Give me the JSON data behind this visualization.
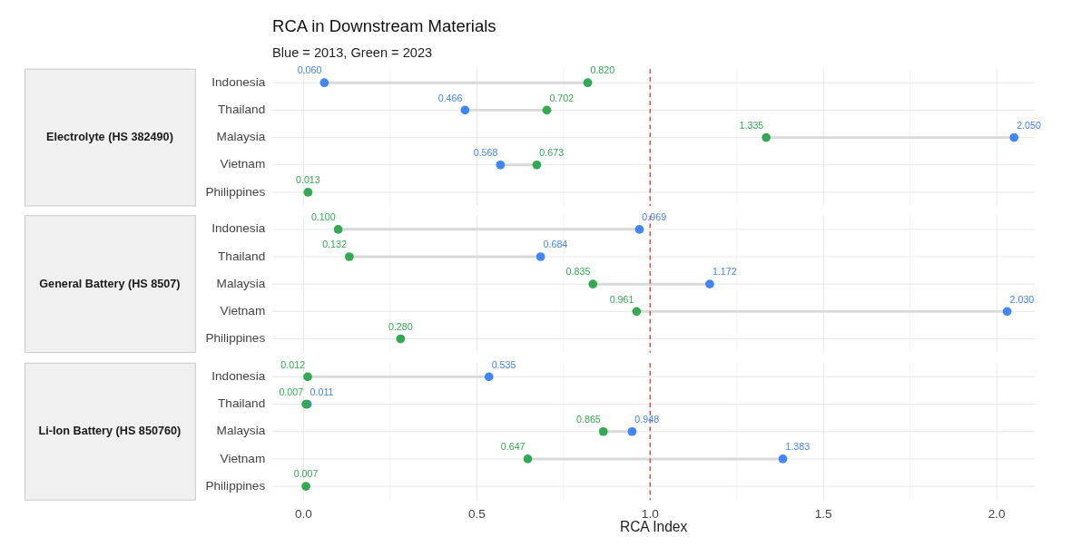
{
  "chart_data": [
    {
      "type": "scatter",
      "orientation": "horizontal",
      "title": "RCA in Downstream Materials",
      "subtitle": "Blue = 2013, Green = 2023",
      "ylabel": "Electrolyte (HS 382490)",
      "marker": "circle",
      "categories": [
        "Indonesia",
        "Thailand",
        "Malaysia",
        "Vietnam",
        "Philippines"
      ],
      "series": [
        {
          "color": "#4285f4",
          "values": [
            0.06,
            0.466,
            2.05,
            0.568,
            null
          ],
          "value_labels": [
            "0.060",
            "0.466",
            "2.050",
            "0.568",
            null
          ]
        },
        {
          "color": "#34a853",
          "values": [
            0.82,
            0.702,
            1.335,
            0.673,
            0.013
          ],
          "value_labels": [
            "0.820",
            "0.702",
            "1.335",
            "0.673",
            "0.013"
          ]
        }
      ],
      "xlim": [
        -0.09,
        2.11
      ],
      "xticks": [
        0,
        0.5,
        1,
        1.5,
        2
      ],
      "grid": true,
      "tick_labels": "y",
      "ref_lines": [
        {
          "axis": "x",
          "value": 1,
          "color": "#e8453c",
          "line_style": "dashed"
        }
      ]
    },
    {
      "type": "scatter",
      "orientation": "horizontal",
      "ylabel": "General Battery (HS 8507)",
      "marker": "circle",
      "categories": [
        "Indonesia",
        "Thailand",
        "Malaysia",
        "Vietnam",
        "Philippines"
      ],
      "series": [
        {
          "color": "#4285f4",
          "values": [
            0.969,
            0.684,
            1.172,
            2.03,
            null
          ],
          "value_labels": [
            "0.969",
            "0.684",
            "1.172",
            "2.030",
            null
          ]
        },
        {
          "color": "#34a853",
          "values": [
            0.1,
            0.132,
            0.835,
            0.961,
            0.28
          ],
          "value_labels": [
            "0.100",
            "0.132",
            "0.835",
            "0.961",
            "0.280"
          ]
        }
      ],
      "xlim": [
        -0.09,
        2.11
      ],
      "xticks": [
        0,
        0.5,
        1,
        1.5,
        2
      ],
      "grid": true,
      "tick_labels": "y",
      "ref_lines": [
        {
          "axis": "x",
          "value": 1,
          "color": "#e8453c",
          "line_style": "dashed"
        }
      ]
    },
    {
      "type": "scatter",
      "orientation": "horizontal",
      "ylabel": "Li-Ion Battery (HS 850760)",
      "xlabel": "RCA Index",
      "marker": "circle",
      "categories": [
        "Indonesia",
        "Thailand",
        "Malaysia",
        "Vietnam",
        "Philippines"
      ],
      "series": [
        {
          "color": "#4285f4",
          "values": [
            0.535,
            0.011,
            0.948,
            1.383,
            null
          ],
          "value_labels": [
            "0.535",
            "0.011",
            "0.948",
            "1.383",
            null
          ]
        },
        {
          "color": "#34a853",
          "values": [
            0.012,
            0.007,
            0.865,
            0.647,
            0.007
          ],
          "value_labels": [
            "0.012",
            "0.007",
            "0.865",
            "0.647",
            "0.007"
          ]
        }
      ],
      "xlim": [
        -0.09,
        2.11
      ],
      "xticks": [
        {
          "value": 0,
          "label": "0.0"
        },
        {
          "value": 0.5,
          "label": "0.5"
        },
        {
          "value": 1,
          "label": "1.0"
        },
        {
          "value": 1.5,
          "label": "1.5"
        },
        {
          "value": 2,
          "label": "2.0"
        }
      ],
      "grid": true,
      "ref_lines": [
        {
          "axis": "x",
          "value": 1,
          "color": "#e8453c",
          "line_style": "dashed"
        }
      ]
    }
  ]
}
